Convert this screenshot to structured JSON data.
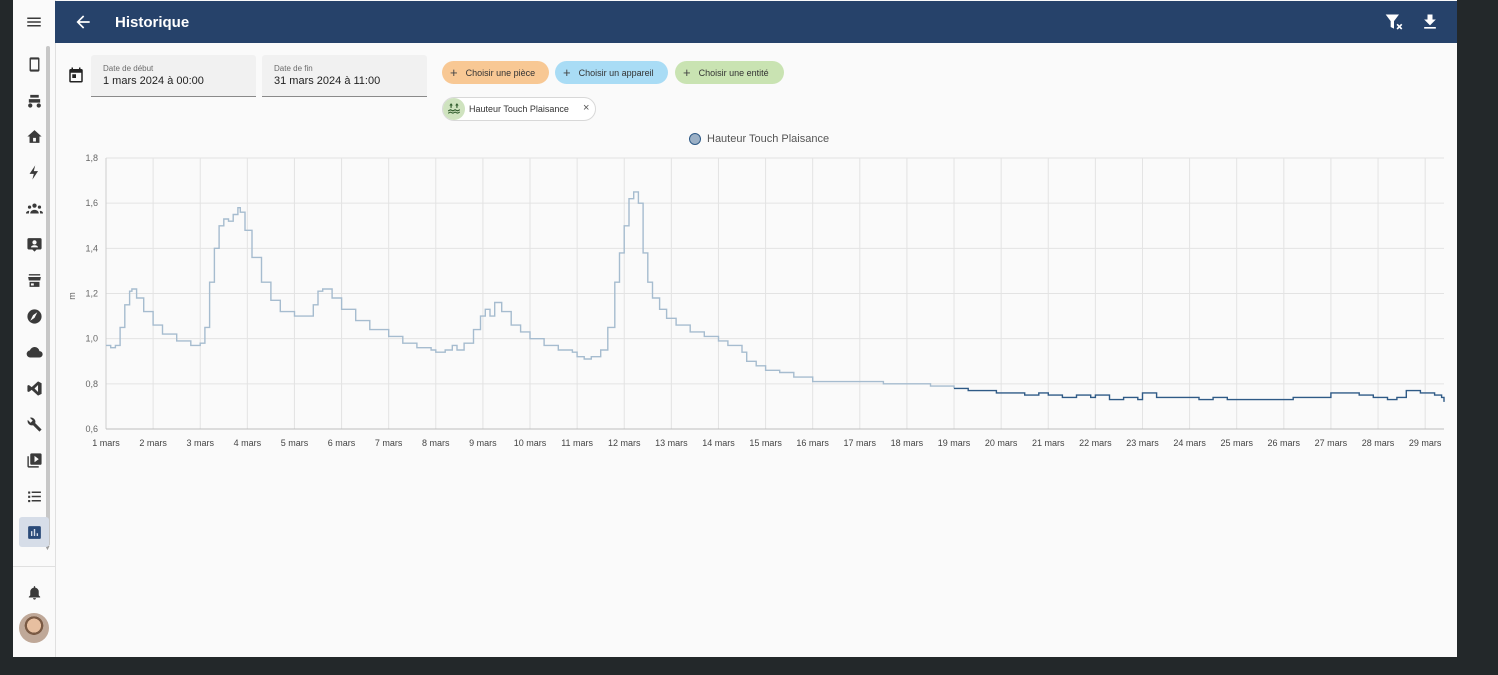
{
  "header": {
    "title": "Historique"
  },
  "colors": {
    "header_bg": "#26426a",
    "line": "#2f5a86",
    "line_light": "#a6bccf",
    "accent": "#26426a"
  },
  "icons": {
    "menu": "menu-icon",
    "back": "arrow-left-icon",
    "clear_filter": "filter-remove-icon",
    "download": "download-icon",
    "calendar": "calendar-icon"
  },
  "sidebar": {
    "items": [
      {
        "name": "tablet-icon"
      },
      {
        "name": "robot-mower-icon"
      },
      {
        "name": "home-icon"
      },
      {
        "name": "lightning-icon"
      },
      {
        "name": "group-icon"
      },
      {
        "name": "contact-card-icon"
      },
      {
        "name": "store-icon"
      },
      {
        "name": "compass-icon"
      },
      {
        "name": "cloud-icon"
      },
      {
        "name": "vscode-icon"
      },
      {
        "name": "wrench-icon"
      },
      {
        "name": "media-icon"
      },
      {
        "name": "list-icon"
      },
      {
        "name": "chart-box-icon",
        "active": true
      }
    ],
    "notifications_icon": "bell-icon",
    "avatar": "user-avatar"
  },
  "filters": {
    "start": {
      "label": "Date de début",
      "value": "1 mars 2024 à 00:00"
    },
    "end": {
      "label": "Date de fin",
      "value": "31 mars 2024 à 11:00"
    },
    "chips": [
      {
        "label": "Choisir une pièce",
        "color": "#f8c894"
      },
      {
        "label": "Choisir un appareil",
        "color": "#a9dcf5"
      },
      {
        "label": "Choisir une entité",
        "color": "#c9e3b2"
      }
    ],
    "selected_entity": {
      "label": "Hauteur Touch Plaisance",
      "icon": "water-level-icon",
      "remove_glyph": "×"
    }
  },
  "chart_data": {
    "type": "line",
    "unit_label": "m",
    "legend_position": "top-center",
    "grid": true,
    "ylim": [
      0.6,
      1.8
    ],
    "y_ticks": [
      "0,6",
      "0,8",
      "1,0",
      "1,2",
      "1,4",
      "1,6",
      "1,8"
    ],
    "x_ticks": [
      "1 mars",
      "2 mars",
      "3 mars",
      "4 mars",
      "5 mars",
      "6 mars",
      "7 mars",
      "8 mars",
      "9 mars",
      "10 mars",
      "11 mars",
      "12 mars",
      "13 mars",
      "14 mars",
      "15 mars",
      "16 mars",
      "17 mars",
      "18 mars",
      "19 mars",
      "20 mars",
      "21 mars",
      "22 mars",
      "23 mars",
      "24 mars",
      "25 mars",
      "26 mars",
      "27 mars",
      "28 mars",
      "29 mars"
    ],
    "xlim_days": [
      1,
      29.4
    ],
    "series": [
      {
        "name": "Hauteur Touch Plaisance",
        "x_days": [
          1.0,
          1.1,
          1.2,
          1.3,
          1.4,
          1.5,
          1.55,
          1.65,
          1.8,
          2.0,
          2.2,
          2.5,
          2.8,
          3.0,
          3.1,
          3.2,
          3.3,
          3.4,
          3.5,
          3.6,
          3.7,
          3.8,
          3.85,
          3.95,
          4.1,
          4.3,
          4.5,
          4.7,
          5.0,
          5.2,
          5.4,
          5.5,
          5.6,
          5.8,
          6.0,
          6.3,
          6.6,
          7.0,
          7.3,
          7.6,
          7.9,
          8.0,
          8.2,
          8.35,
          8.45,
          8.6,
          8.8,
          8.95,
          9.05,
          9.15,
          9.25,
          9.4,
          9.6,
          9.8,
          10.0,
          10.3,
          10.6,
          10.9,
          11.0,
          11.15,
          11.3,
          11.5,
          11.65,
          11.8,
          11.9,
          12.0,
          12.1,
          12.2,
          12.3,
          12.4,
          12.5,
          12.6,
          12.75,
          12.9,
          13.1,
          13.4,
          13.7,
          14.0,
          14.2,
          14.5,
          14.6,
          14.8,
          15.0,
          15.3,
          15.6,
          16.0,
          16.5,
          17.0,
          17.5,
          18.0,
          18.5,
          19.0,
          19.3,
          19.6,
          19.9,
          20.2,
          20.5,
          20.8,
          21.0,
          21.3,
          21.6,
          21.9,
          22.0,
          22.3,
          22.6,
          22.9,
          23.0,
          23.3,
          23.6,
          23.9,
          24.2,
          24.5,
          24.8,
          25.0,
          25.3,
          25.6,
          25.9,
          26.2,
          26.5,
          26.8,
          27.0,
          27.3,
          27.6,
          27.9,
          28.0,
          28.2,
          28.4,
          28.6,
          28.9,
          29.2,
          29.35,
          29.4
        ],
        "y": [
          0.97,
          0.96,
          0.97,
          1.05,
          1.15,
          1.21,
          1.22,
          1.18,
          1.12,
          1.06,
          1.02,
          0.99,
          0.97,
          0.98,
          1.05,
          1.25,
          1.4,
          1.5,
          1.53,
          1.52,
          1.55,
          1.58,
          1.56,
          1.48,
          1.36,
          1.25,
          1.17,
          1.12,
          1.1,
          1.1,
          1.15,
          1.21,
          1.22,
          1.18,
          1.13,
          1.08,
          1.04,
          1.01,
          0.98,
          0.96,
          0.95,
          0.94,
          0.95,
          0.97,
          0.95,
          0.98,
          1.04,
          1.1,
          1.13,
          1.1,
          1.16,
          1.12,
          1.06,
          1.03,
          1.0,
          0.97,
          0.95,
          0.94,
          0.92,
          0.91,
          0.92,
          0.95,
          1.05,
          1.25,
          1.38,
          1.5,
          1.62,
          1.65,
          1.6,
          1.38,
          1.25,
          1.18,
          1.13,
          1.09,
          1.06,
          1.03,
          1.01,
          0.99,
          0.97,
          0.94,
          0.9,
          0.88,
          0.86,
          0.85,
          0.83,
          0.81,
          0.81,
          0.81,
          0.8,
          0.8,
          0.79,
          0.78,
          0.77,
          0.77,
          0.76,
          0.76,
          0.75,
          0.76,
          0.75,
          0.74,
          0.75,
          0.74,
          0.75,
          0.73,
          0.74,
          0.73,
          0.76,
          0.74,
          0.74,
          0.74,
          0.73,
          0.74,
          0.73,
          0.73,
          0.73,
          0.73,
          0.73,
          0.74,
          0.74,
          0.74,
          0.76,
          0.76,
          0.75,
          0.74,
          0.74,
          0.73,
          0.74,
          0.77,
          0.76,
          0.75,
          0.74,
          0.72
        ]
      }
    ]
  }
}
